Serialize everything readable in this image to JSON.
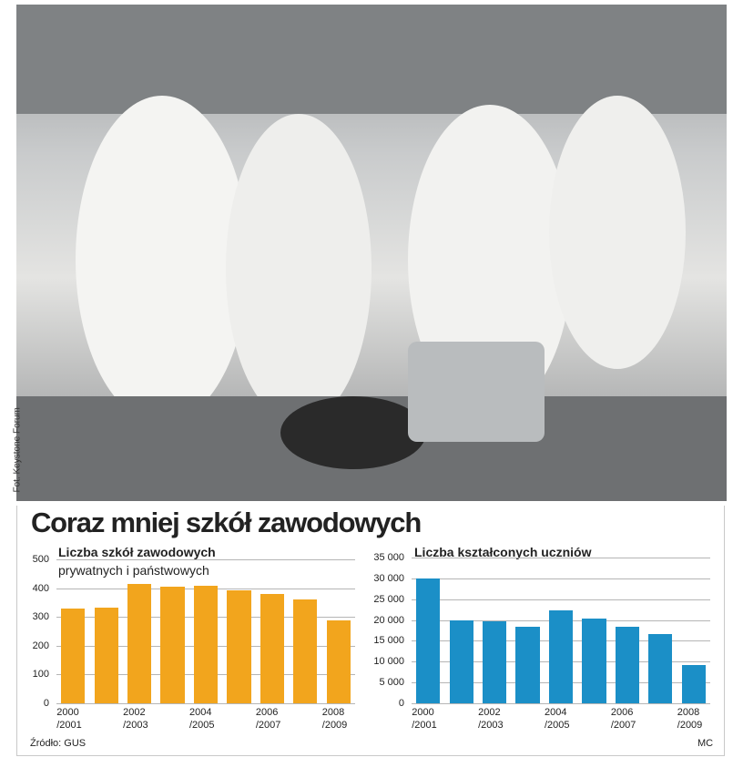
{
  "photo_credit": "Fot. Keystone Forum",
  "title": "Coraz mniej szkół zawodowych",
  "source": "Źródło: GUS",
  "author": "MC",
  "chart_data": [
    {
      "type": "bar",
      "title": "Liczba szkół zawodowych",
      "subtitle": "prywatnych i państwowych",
      "categories": [
        "2000\n/2001",
        null,
        "2002\n/2003",
        null,
        "2004\n/2005",
        null,
        "2006\n/2007",
        null,
        "2008\n/2009"
      ],
      "values": [
        330,
        332,
        415,
        405,
        408,
        392,
        380,
        361,
        288
      ],
      "color": "#f2a51d",
      "ylim": [
        0,
        500
      ],
      "yticks": [
        0,
        100,
        200,
        300,
        400,
        500
      ],
      "grid": true
    },
    {
      "type": "bar",
      "title": "Liczba kształconych uczniów",
      "categories": [
        "2000\n/2001",
        null,
        "2002\n/2003",
        null,
        "2004\n/2005",
        null,
        "2006\n/2007",
        null,
        "2008\n/2009"
      ],
      "values": [
        30000,
        19900,
        19700,
        18400,
        22300,
        20300,
        18400,
        16600,
        9200
      ],
      "color": "#1b8fc7",
      "ylim": [
        0,
        35000
      ],
      "yticks": [
        0,
        {
          "value": 5000,
          "label": "5 000"
        },
        {
          "value": 10000,
          "label": "10 000"
        },
        {
          "value": 15000,
          "label": "15 000"
        },
        {
          "value": 20000,
          "label": "20 000"
        },
        {
          "value": 25000,
          "label": "25 000"
        },
        {
          "value": 30000,
          "label": "30 000"
        },
        {
          "value": 35000,
          "label": "35 000"
        }
      ],
      "grid": true
    }
  ]
}
